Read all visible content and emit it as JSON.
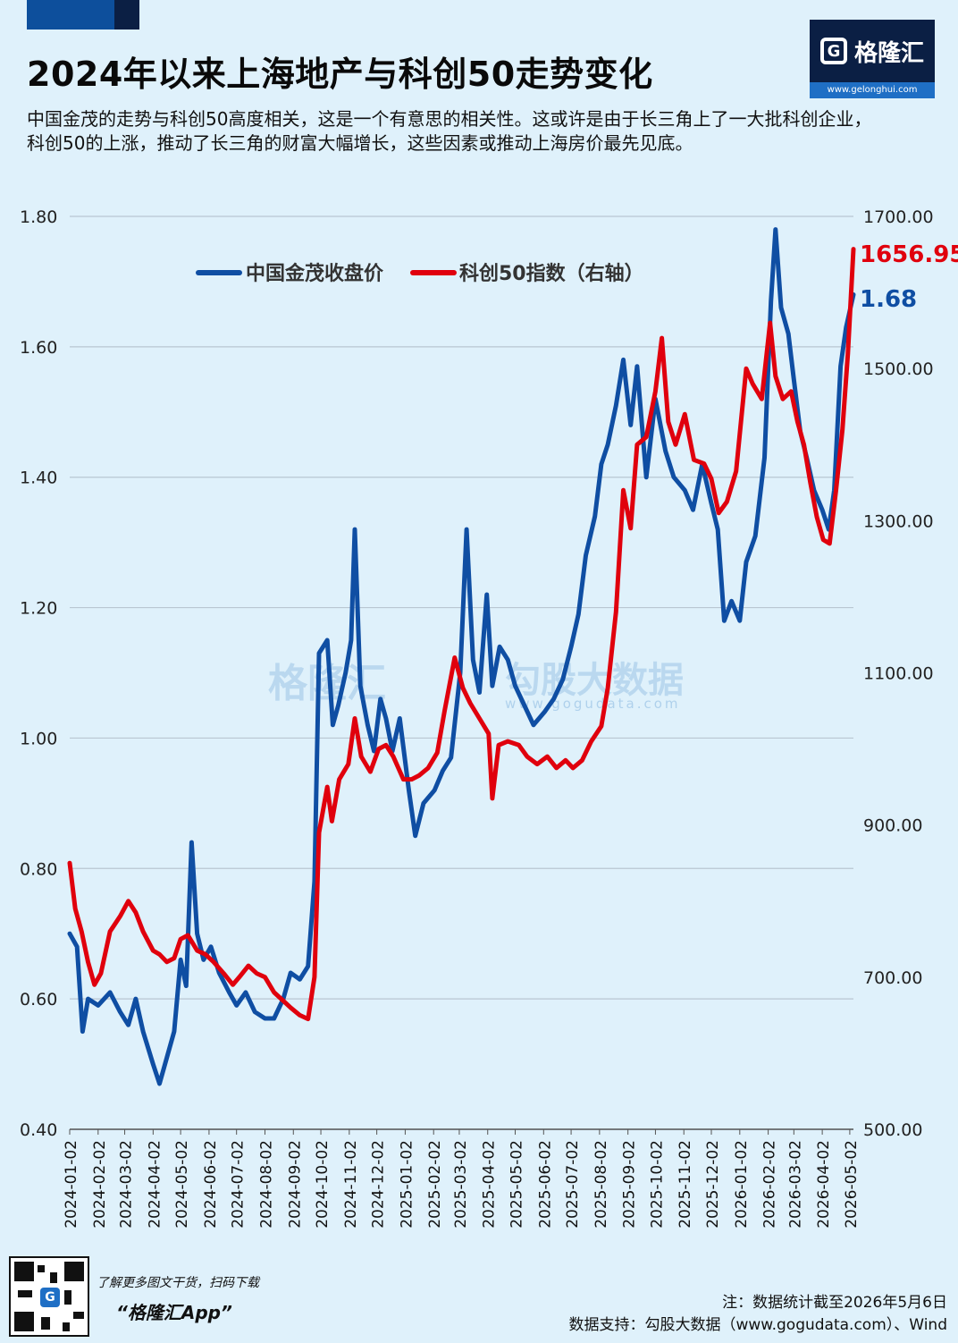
{
  "header": {
    "title": "2024年以来上海地产与科创50走势变化",
    "subtitle": "中国金茂的走势与科创50高度相关，这是一个有意思的相关性。这或许是由于长三角上了一大批科创企业，科创50的上涨，推动了长三角的财富大幅增长，这些因素或推动上海房价最先见底。"
  },
  "logo": {
    "text": "格隆汇",
    "glyph": "G",
    "url": "www.gelonghui.com"
  },
  "watermarks": {
    "left": "格隆汇",
    "right": "勾股大数据",
    "right_url": "www.gogudata.com"
  },
  "footer": {
    "promo": "了解更多图文干货，扫码下载",
    "app": "“格隆汇App”",
    "note": "注：数据统计截至2026年5月6日",
    "source": "数据支持：勾股大数据（www.gogudata.com）、Wind"
  },
  "colors": {
    "blue": "#0f4ea3",
    "red": "#e0000d",
    "grid": "#b9c6d2"
  },
  "chart_data": {
    "type": "line",
    "title": "",
    "legend": [
      "中国金茂收盘价",
      "科创50指数（右轴）"
    ],
    "legend_position": "top-left",
    "grid": true,
    "y_left": {
      "min": 0.4,
      "max": 1.8,
      "ticks": [
        "0.40",
        "0.60",
        "0.80",
        "1.00",
        "1.20",
        "1.40",
        "1.60",
        "1.80"
      ]
    },
    "y_right": {
      "min": 500,
      "max": 1700,
      "ticks": [
        "500.00",
        "700.00",
        "900.00",
        "1100.00",
        "1300.00",
        "1500.00",
        "1700.00"
      ]
    },
    "x_ticks": [
      "2024-01-02",
      "2024-02-02",
      "2024-03-02",
      "2024-04-02",
      "2024-05-02",
      "2024-06-02",
      "2024-07-02",
      "2024-08-02",
      "2024-09-02",
      "2024-10-02",
      "2024-11-02",
      "2024-12-02",
      "2025-01-02",
      "2025-02-02",
      "2025-03-02",
      "2025-04-02",
      "2025-05-02",
      "2025-06-02",
      "2025-07-02",
      "2025-08-02",
      "2025-09-02",
      "2025-10-02",
      "2025-11-02",
      "2025-12-02",
      "2026-01-02",
      "2026-02-02",
      "2026-03-02",
      "2026-04-02",
      "2026-05-02"
    ],
    "end_labels": {
      "red": "1656.95",
      "blue": "1.68"
    },
    "series": [
      {
        "name": "中国金茂收盘价",
        "axis": "left",
        "color": "#0f4ea3",
        "points": [
          [
            "2024-01-02",
            0.7
          ],
          [
            "2024-01-10",
            0.68
          ],
          [
            "2024-01-16",
            0.55
          ],
          [
            "2024-01-22",
            0.6
          ],
          [
            "2024-02-02",
            0.59
          ],
          [
            "2024-02-15",
            0.61
          ],
          [
            "2024-02-26",
            0.58
          ],
          [
            "2024-03-06",
            0.56
          ],
          [
            "2024-03-14",
            0.6
          ],
          [
            "2024-03-22",
            0.55
          ],
          [
            "2024-04-02",
            0.5
          ],
          [
            "2024-04-09",
            0.47
          ],
          [
            "2024-04-17",
            0.51
          ],
          [
            "2024-04-25",
            0.55
          ],
          [
            "2024-05-02",
            0.66
          ],
          [
            "2024-05-08",
            0.62
          ],
          [
            "2024-05-14",
            0.84
          ],
          [
            "2024-05-20",
            0.7
          ],
          [
            "2024-05-27",
            0.66
          ],
          [
            "2024-06-04",
            0.68
          ],
          [
            "2024-06-13",
            0.64
          ],
          [
            "2024-06-24",
            0.61
          ],
          [
            "2024-07-02",
            0.59
          ],
          [
            "2024-07-12",
            0.61
          ],
          [
            "2024-07-22",
            0.58
          ],
          [
            "2024-08-02",
            0.57
          ],
          [
            "2024-08-12",
            0.57
          ],
          [
            "2024-08-22",
            0.6
          ],
          [
            "2024-08-30",
            0.64
          ],
          [
            "2024-09-09",
            0.63
          ],
          [
            "2024-09-18",
            0.65
          ],
          [
            "2024-09-25",
            0.78
          ],
          [
            "2024-09-30",
            1.13
          ],
          [
            "2024-10-09",
            1.15
          ],
          [
            "2024-10-15",
            1.02
          ],
          [
            "2024-10-21",
            1.05
          ],
          [
            "2024-10-29",
            1.1
          ],
          [
            "2024-11-04",
            1.15
          ],
          [
            "2024-11-08",
            1.32
          ],
          [
            "2024-11-14",
            1.08
          ],
          [
            "2024-11-22",
            1.02
          ],
          [
            "2024-11-29",
            0.98
          ],
          [
            "2024-12-06",
            1.06
          ],
          [
            "2024-12-12",
            1.03
          ],
          [
            "2024-12-19",
            0.98
          ],
          [
            "2024-12-27",
            1.03
          ],
          [
            "2025-01-06",
            0.92
          ],
          [
            "2025-01-13",
            0.85
          ],
          [
            "2025-01-22",
            0.9
          ],
          [
            "2025-02-03",
            0.92
          ],
          [
            "2025-02-12",
            0.95
          ],
          [
            "2025-02-21",
            0.97
          ],
          [
            "2025-03-03",
            1.1
          ],
          [
            "2025-03-10",
            1.32
          ],
          [
            "2025-03-17",
            1.12
          ],
          [
            "2025-03-24",
            1.07
          ],
          [
            "2025-04-01",
            1.22
          ],
          [
            "2025-04-07",
            1.08
          ],
          [
            "2025-04-15",
            1.14
          ],
          [
            "2025-04-24",
            1.12
          ],
          [
            "2025-05-02",
            1.08
          ],
          [
            "2025-05-12",
            1.05
          ],
          [
            "2025-05-22",
            1.02
          ],
          [
            "2025-06-03",
            1.04
          ],
          [
            "2025-06-13",
            1.06
          ],
          [
            "2025-06-23",
            1.09
          ],
          [
            "2025-07-02",
            1.14
          ],
          [
            "2025-07-10",
            1.19
          ],
          [
            "2025-07-18",
            1.28
          ],
          [
            "2025-07-28",
            1.34
          ],
          [
            "2025-08-04",
            1.42
          ],
          [
            "2025-08-11",
            1.45
          ],
          [
            "2025-08-20",
            1.51
          ],
          [
            "2025-08-28",
            1.58
          ],
          [
            "2025-09-05",
            1.48
          ],
          [
            "2025-09-12",
            1.57
          ],
          [
            "2025-09-22",
            1.4
          ],
          [
            "2025-10-02",
            1.52
          ],
          [
            "2025-10-13",
            1.44
          ],
          [
            "2025-10-22",
            1.4
          ],
          [
            "2025-11-03",
            1.38
          ],
          [
            "2025-11-12",
            1.35
          ],
          [
            "2025-11-22",
            1.42
          ],
          [
            "2025-12-02",
            1.36
          ],
          [
            "2025-12-09",
            1.32
          ],
          [
            "2025-12-16",
            1.18
          ],
          [
            "2025-12-24",
            1.21
          ],
          [
            "2026-01-02",
            1.18
          ],
          [
            "2026-01-09",
            1.27
          ],
          [
            "2026-01-19",
            1.31
          ],
          [
            "2026-01-29",
            1.43
          ],
          [
            "2026-02-05",
            1.67
          ],
          [
            "2026-02-10",
            1.78
          ],
          [
            "2026-02-16",
            1.66
          ],
          [
            "2026-02-24",
            1.62
          ],
          [
            "2026-03-02",
            1.55
          ],
          [
            "2026-03-09",
            1.47
          ],
          [
            "2026-03-16",
            1.43
          ],
          [
            "2026-03-24",
            1.38
          ],
          [
            "2026-04-02",
            1.35
          ],
          [
            "2026-04-09",
            1.32
          ],
          [
            "2026-04-15",
            1.38
          ],
          [
            "2026-04-22",
            1.57
          ],
          [
            "2026-04-28",
            1.63
          ],
          [
            "2026-05-06",
            1.68
          ]
        ]
      },
      {
        "name": "科创50指数（右轴）",
        "axis": "right",
        "color": "#e0000d",
        "points": [
          [
            "2024-01-02",
            850
          ],
          [
            "2024-01-08",
            790
          ],
          [
            "2024-01-15",
            760
          ],
          [
            "2024-01-22",
            720
          ],
          [
            "2024-01-29",
            690
          ],
          [
            "2024-02-05",
            705
          ],
          [
            "2024-02-15",
            760
          ],
          [
            "2024-02-26",
            780
          ],
          [
            "2024-03-06",
            800
          ],
          [
            "2024-03-14",
            785
          ],
          [
            "2024-03-22",
            760
          ],
          [
            "2024-04-02",
            735
          ],
          [
            "2024-04-09",
            730
          ],
          [
            "2024-04-17",
            720
          ],
          [
            "2024-04-25",
            725
          ],
          [
            "2024-05-02",
            750
          ],
          [
            "2024-05-10",
            755
          ],
          [
            "2024-05-20",
            735
          ],
          [
            "2024-05-29",
            730
          ],
          [
            "2024-06-07",
            720
          ],
          [
            "2024-06-18",
            705
          ],
          [
            "2024-06-28",
            690
          ],
          [
            "2024-07-05",
            700
          ],
          [
            "2024-07-15",
            715
          ],
          [
            "2024-07-24",
            705
          ],
          [
            "2024-08-02",
            700
          ],
          [
            "2024-08-12",
            680
          ],
          [
            "2024-08-21",
            670
          ],
          [
            "2024-08-30",
            660
          ],
          [
            "2024-09-09",
            650
          ],
          [
            "2024-09-18",
            645
          ],
          [
            "2024-09-25",
            700
          ],
          [
            "2024-09-30",
            890
          ],
          [
            "2024-10-09",
            950
          ],
          [
            "2024-10-14",
            905
          ],
          [
            "2024-10-22",
            960
          ],
          [
            "2024-11-01",
            980
          ],
          [
            "2024-11-08",
            1040
          ],
          [
            "2024-11-15",
            990
          ],
          [
            "2024-11-25",
            970
          ],
          [
            "2024-12-04",
            1000
          ],
          [
            "2024-12-12",
            1005
          ],
          [
            "2024-12-20",
            990
          ],
          [
            "2024-12-31",
            960
          ],
          [
            "2025-01-09",
            960
          ],
          [
            "2025-01-17",
            965
          ],
          [
            "2025-01-27",
            975
          ],
          [
            "2025-02-06",
            995
          ],
          [
            "2025-02-14",
            1050
          ],
          [
            "2025-02-25",
            1120
          ],
          [
            "2025-03-06",
            1080
          ],
          [
            "2025-03-14",
            1060
          ],
          [
            "2025-03-24",
            1040
          ],
          [
            "2025-04-03",
            1020
          ],
          [
            "2025-04-07",
            935
          ],
          [
            "2025-04-14",
            1005
          ],
          [
            "2025-04-24",
            1010
          ],
          [
            "2025-05-06",
            1005
          ],
          [
            "2025-05-15",
            990
          ],
          [
            "2025-05-26",
            980
          ],
          [
            "2025-06-06",
            990
          ],
          [
            "2025-06-16",
            975
          ],
          [
            "2025-06-26",
            985
          ],
          [
            "2025-07-04",
            975
          ],
          [
            "2025-07-14",
            985
          ],
          [
            "2025-07-24",
            1010
          ],
          [
            "2025-08-04",
            1030
          ],
          [
            "2025-08-11",
            1080
          ],
          [
            "2025-08-20",
            1180
          ],
          [
            "2025-08-28",
            1340
          ],
          [
            "2025-09-05",
            1290
          ],
          [
            "2025-09-12",
            1400
          ],
          [
            "2025-09-22",
            1410
          ],
          [
            "2025-10-02",
            1470
          ],
          [
            "2025-10-09",
            1540
          ],
          [
            "2025-10-16",
            1430
          ],
          [
            "2025-10-24",
            1400
          ],
          [
            "2025-11-03",
            1440
          ],
          [
            "2025-11-13",
            1380
          ],
          [
            "2025-11-24",
            1375
          ],
          [
            "2025-12-02",
            1355
          ],
          [
            "2025-12-10",
            1310
          ],
          [
            "2025-12-19",
            1325
          ],
          [
            "2025-12-29",
            1365
          ],
          [
            "2026-01-09",
            1500
          ],
          [
            "2026-01-16",
            1480
          ],
          [
            "2026-01-26",
            1460
          ],
          [
            "2026-02-04",
            1560
          ],
          [
            "2026-02-10",
            1490
          ],
          [
            "2026-02-18",
            1460
          ],
          [
            "2026-02-27",
            1470
          ],
          [
            "2026-03-06",
            1430
          ],
          [
            "2026-03-13",
            1400
          ],
          [
            "2026-03-20",
            1350
          ],
          [
            "2026-03-27",
            1305
          ],
          [
            "2026-04-03",
            1275
          ],
          [
            "2026-04-10",
            1270
          ],
          [
            "2026-04-17",
            1340
          ],
          [
            "2026-04-24",
            1420
          ],
          [
            "2026-04-30",
            1520
          ],
          [
            "2026-05-06",
            1656.95
          ]
        ]
      }
    ]
  }
}
